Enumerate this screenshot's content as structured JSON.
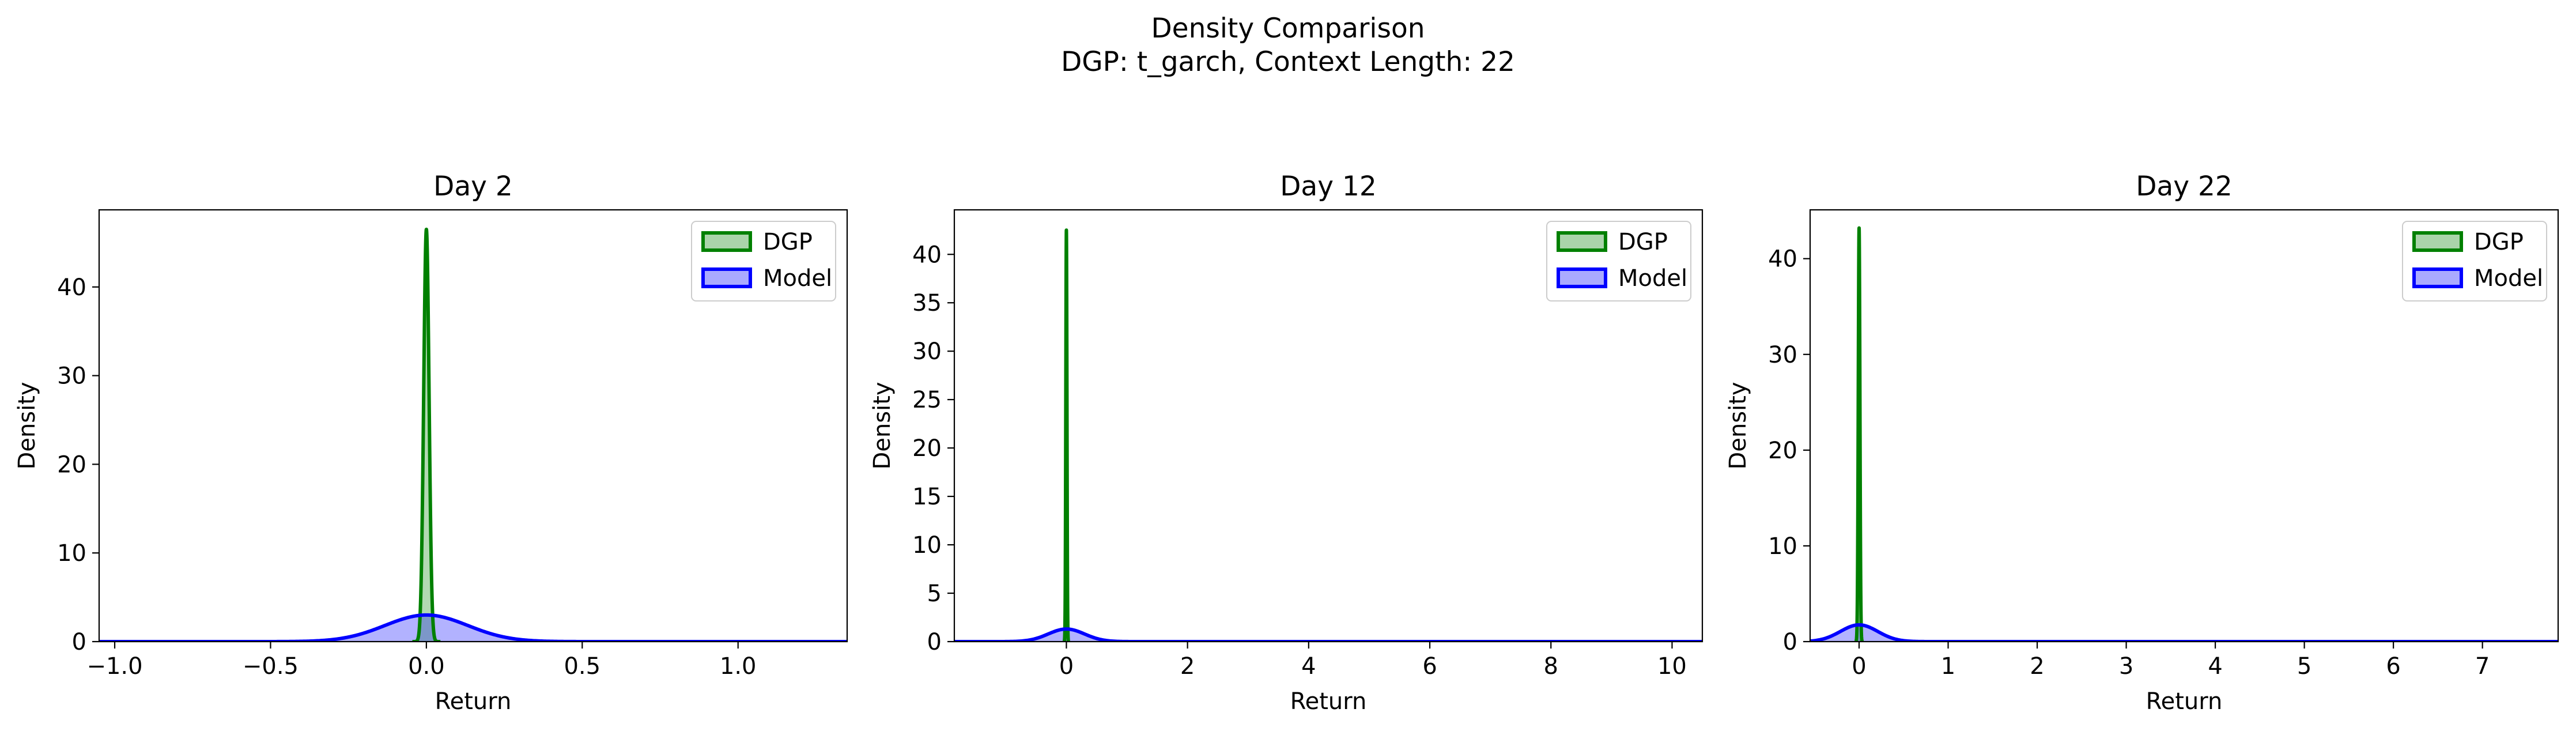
{
  "figure": {
    "title_line1": "Density Comparison",
    "title_line2": "DGP: t_garch, Context Length: 22"
  },
  "colors": {
    "dgp": "#008000",
    "dgp_fill": "#aad4aa",
    "model": "#0000ff",
    "model_fill": "#aaaaff"
  },
  "chart_data": [
    {
      "type": "area",
      "title": "Day 2",
      "xlabel": "Return",
      "ylabel": "Density",
      "xlim": [
        -1.05,
        1.35
      ],
      "ylim": [
        0,
        48.7
      ],
      "xticks": [
        -1.0,
        -0.5,
        0.0,
        0.5,
        1.0
      ],
      "xtick_labels": [
        "−1.0",
        "−0.5",
        "0.0",
        "0.5",
        "1.0"
      ],
      "yticks": [
        0,
        10,
        20,
        30,
        40
      ],
      "ytick_labels": [
        "0",
        "10",
        "20",
        "30",
        "40"
      ],
      "legend": "top-right",
      "series": [
        {
          "name": "DGP",
          "color": "#008000",
          "fill": "#aad4aa",
          "center": 0.0,
          "peak": 46.5,
          "sd": 0.0086,
          "xmin": -0.045,
          "xmax": 0.045
        },
        {
          "name": "Model",
          "color": "#0000ff",
          "fill": "#aaaaff",
          "center": 0.0,
          "peak": 3.0,
          "sd": 0.133,
          "xmin": -1.05,
          "xmax": 1.35
        }
      ]
    },
    {
      "type": "area",
      "title": "Day 12",
      "xlabel": "Return",
      "ylabel": "Density",
      "xlim": [
        -1.85,
        10.5
      ],
      "ylim": [
        0,
        44.6
      ],
      "xticks": [
        0,
        2,
        4,
        6,
        8,
        10
      ],
      "xtick_labels": [
        "0",
        "2",
        "4",
        "6",
        "8",
        "10"
      ],
      "yticks": [
        0,
        5,
        10,
        15,
        20,
        25,
        30,
        35,
        40
      ],
      "ytick_labels": [
        "0",
        "5",
        "10",
        "15",
        "20",
        "25",
        "30",
        "35",
        "40"
      ],
      "legend": "top-right",
      "series": [
        {
          "name": "DGP",
          "color": "#008000",
          "fill": "#aad4aa",
          "center": 0.0,
          "peak": 42.5,
          "sd": 0.0094,
          "xmin": -0.06,
          "xmax": 0.06
        },
        {
          "name": "Model",
          "color": "#0000ff",
          "fill": "#aaaaff",
          "center": 0.0,
          "peak": 1.3,
          "sd": 0.3,
          "xmin": -1.85,
          "xmax": 10.5
        }
      ]
    },
    {
      "type": "area",
      "title": "Day 22",
      "xlabel": "Return",
      "ylabel": "Density",
      "xlim": [
        -0.55,
        7.85
      ],
      "ylim": [
        0,
        45.1
      ],
      "xticks": [
        0,
        1,
        2,
        3,
        4,
        5,
        6,
        7
      ],
      "xtick_labels": [
        "0",
        "1",
        "2",
        "3",
        "4",
        "5",
        "6",
        "7"
      ],
      "yticks": [
        0,
        10,
        20,
        30,
        40
      ],
      "ytick_labels": [
        "0",
        "10",
        "20",
        "30",
        "40"
      ],
      "legend": "top-right",
      "series": [
        {
          "name": "DGP",
          "color": "#008000",
          "fill": "#aad4aa",
          "center": 0.0,
          "peak": 43.2,
          "sd": 0.0092,
          "xmin": -0.05,
          "xmax": 0.05
        },
        {
          "name": "Model",
          "color": "#0000ff",
          "fill": "#aaaaff",
          "center": 0.0,
          "peak": 1.75,
          "sd": 0.21,
          "xmin": -0.55,
          "xmax": 7.85
        }
      ]
    }
  ]
}
